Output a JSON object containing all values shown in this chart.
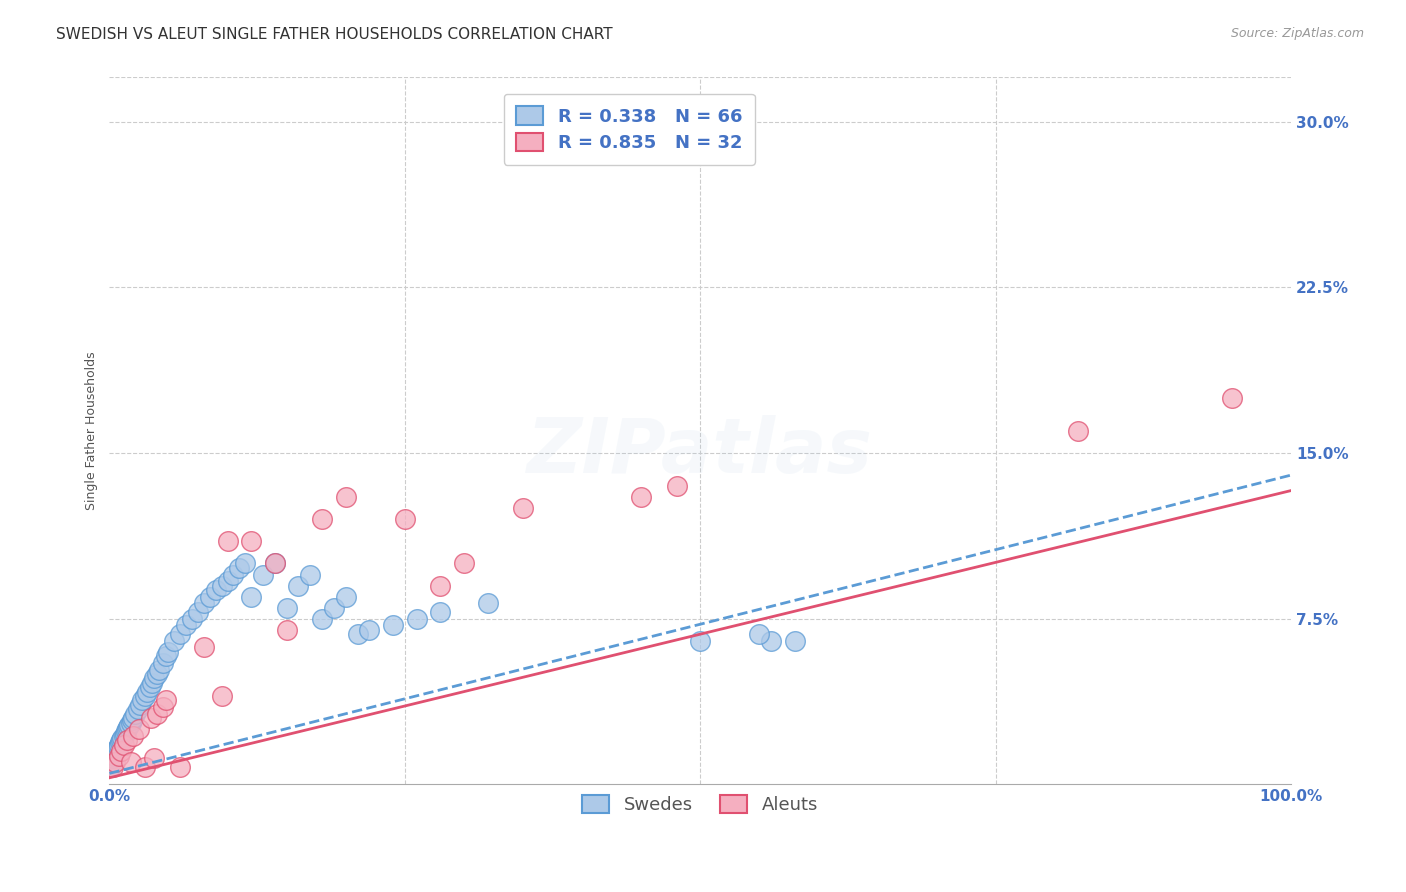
{
  "title": "SWEDISH VS ALEUT SINGLE FATHER HOUSEHOLDS CORRELATION CHART",
  "source": "Source: ZipAtlas.com",
  "ylabel": "Single Father Households",
  "xlim": [
    0,
    1.0
  ],
  "ylim": [
    0,
    0.32
  ],
  "xticks": [
    0.0,
    0.25,
    0.5,
    0.75,
    1.0
  ],
  "xticklabels": [
    "0.0%",
    "",
    "",
    "",
    "100.0%"
  ],
  "yticks": [
    0.0,
    0.075,
    0.15,
    0.225,
    0.3
  ],
  "yticklabels": [
    "",
    "7.5%",
    "15.0%",
    "22.5%",
    "30.0%"
  ],
  "swedish_color": "#adc9e8",
  "aleut_color": "#f5afc0",
  "swedish_edge_color": "#5b9bd5",
  "aleut_edge_color": "#e05070",
  "swedish_line_color": "#5b9bd5",
  "aleut_line_color": "#e05070",
  "swedish_R": 0.338,
  "swedish_N": 66,
  "aleut_R": 0.835,
  "aleut_N": 32,
  "watermark": "ZIPatlas",
  "background_color": "#ffffff",
  "grid_color": "#cccccc",
  "legend_label_swedish": "Swedes",
  "legend_label_aleut": "Aleuts",
  "swedish_line_slope": 0.135,
  "swedish_line_intercept": 0.005,
  "aleut_line_slope": 0.13,
  "aleut_line_intercept": 0.003,
  "swedish_points_x": [
    0.001,
    0.002,
    0.003,
    0.004,
    0.005,
    0.006,
    0.007,
    0.008,
    0.009,
    0.01,
    0.011,
    0.012,
    0.013,
    0.014,
    0.015,
    0.016,
    0.017,
    0.018,
    0.019,
    0.02,
    0.022,
    0.024,
    0.026,
    0.028,
    0.03,
    0.032,
    0.034,
    0.036,
    0.038,
    0.04,
    0.042,
    0.045,
    0.048,
    0.05,
    0.055,
    0.06,
    0.065,
    0.07,
    0.075,
    0.08,
    0.085,
    0.09,
    0.095,
    0.1,
    0.105,
    0.11,
    0.115,
    0.12,
    0.13,
    0.14,
    0.15,
    0.16,
    0.17,
    0.18,
    0.19,
    0.2,
    0.21,
    0.22,
    0.24,
    0.26,
    0.28,
    0.32,
    0.56,
    0.58,
    0.5,
    0.55
  ],
  "swedish_points_y": [
    0.008,
    0.01,
    0.012,
    0.013,
    0.015,
    0.016,
    0.017,
    0.018,
    0.019,
    0.02,
    0.021,
    0.022,
    0.023,
    0.024,
    0.025,
    0.026,
    0.027,
    0.028,
    0.029,
    0.03,
    0.032,
    0.034,
    0.036,
    0.038,
    0.04,
    0.042,
    0.044,
    0.046,
    0.048,
    0.05,
    0.052,
    0.055,
    0.058,
    0.06,
    0.065,
    0.068,
    0.072,
    0.075,
    0.078,
    0.082,
    0.085,
    0.088,
    0.09,
    0.092,
    0.095,
    0.098,
    0.1,
    0.085,
    0.095,
    0.1,
    0.08,
    0.09,
    0.095,
    0.075,
    0.08,
    0.085,
    0.068,
    0.07,
    0.072,
    0.075,
    0.078,
    0.082,
    0.065,
    0.065,
    0.065,
    0.068
  ],
  "aleut_points_x": [
    0.003,
    0.005,
    0.008,
    0.01,
    0.012,
    0.015,
    0.018,
    0.02,
    0.025,
    0.03,
    0.035,
    0.038,
    0.04,
    0.045,
    0.048,
    0.06,
    0.08,
    0.095,
    0.1,
    0.12,
    0.14,
    0.15,
    0.18,
    0.2,
    0.25,
    0.28,
    0.3,
    0.35,
    0.45,
    0.48,
    0.82,
    0.95
  ],
  "aleut_points_y": [
    0.008,
    0.01,
    0.013,
    0.015,
    0.018,
    0.02,
    0.01,
    0.022,
    0.025,
    0.008,
    0.03,
    0.012,
    0.032,
    0.035,
    0.038,
    0.008,
    0.062,
    0.04,
    0.11,
    0.11,
    0.1,
    0.07,
    0.12,
    0.13,
    0.12,
    0.09,
    0.1,
    0.125,
    0.13,
    0.135,
    0.16,
    0.175
  ],
  "title_fontsize": 11,
  "source_fontsize": 9,
  "axis_label_fontsize": 9,
  "tick_fontsize": 11,
  "legend_fontsize": 13,
  "watermark_fontsize": 55,
  "watermark_alpha": 0.1
}
